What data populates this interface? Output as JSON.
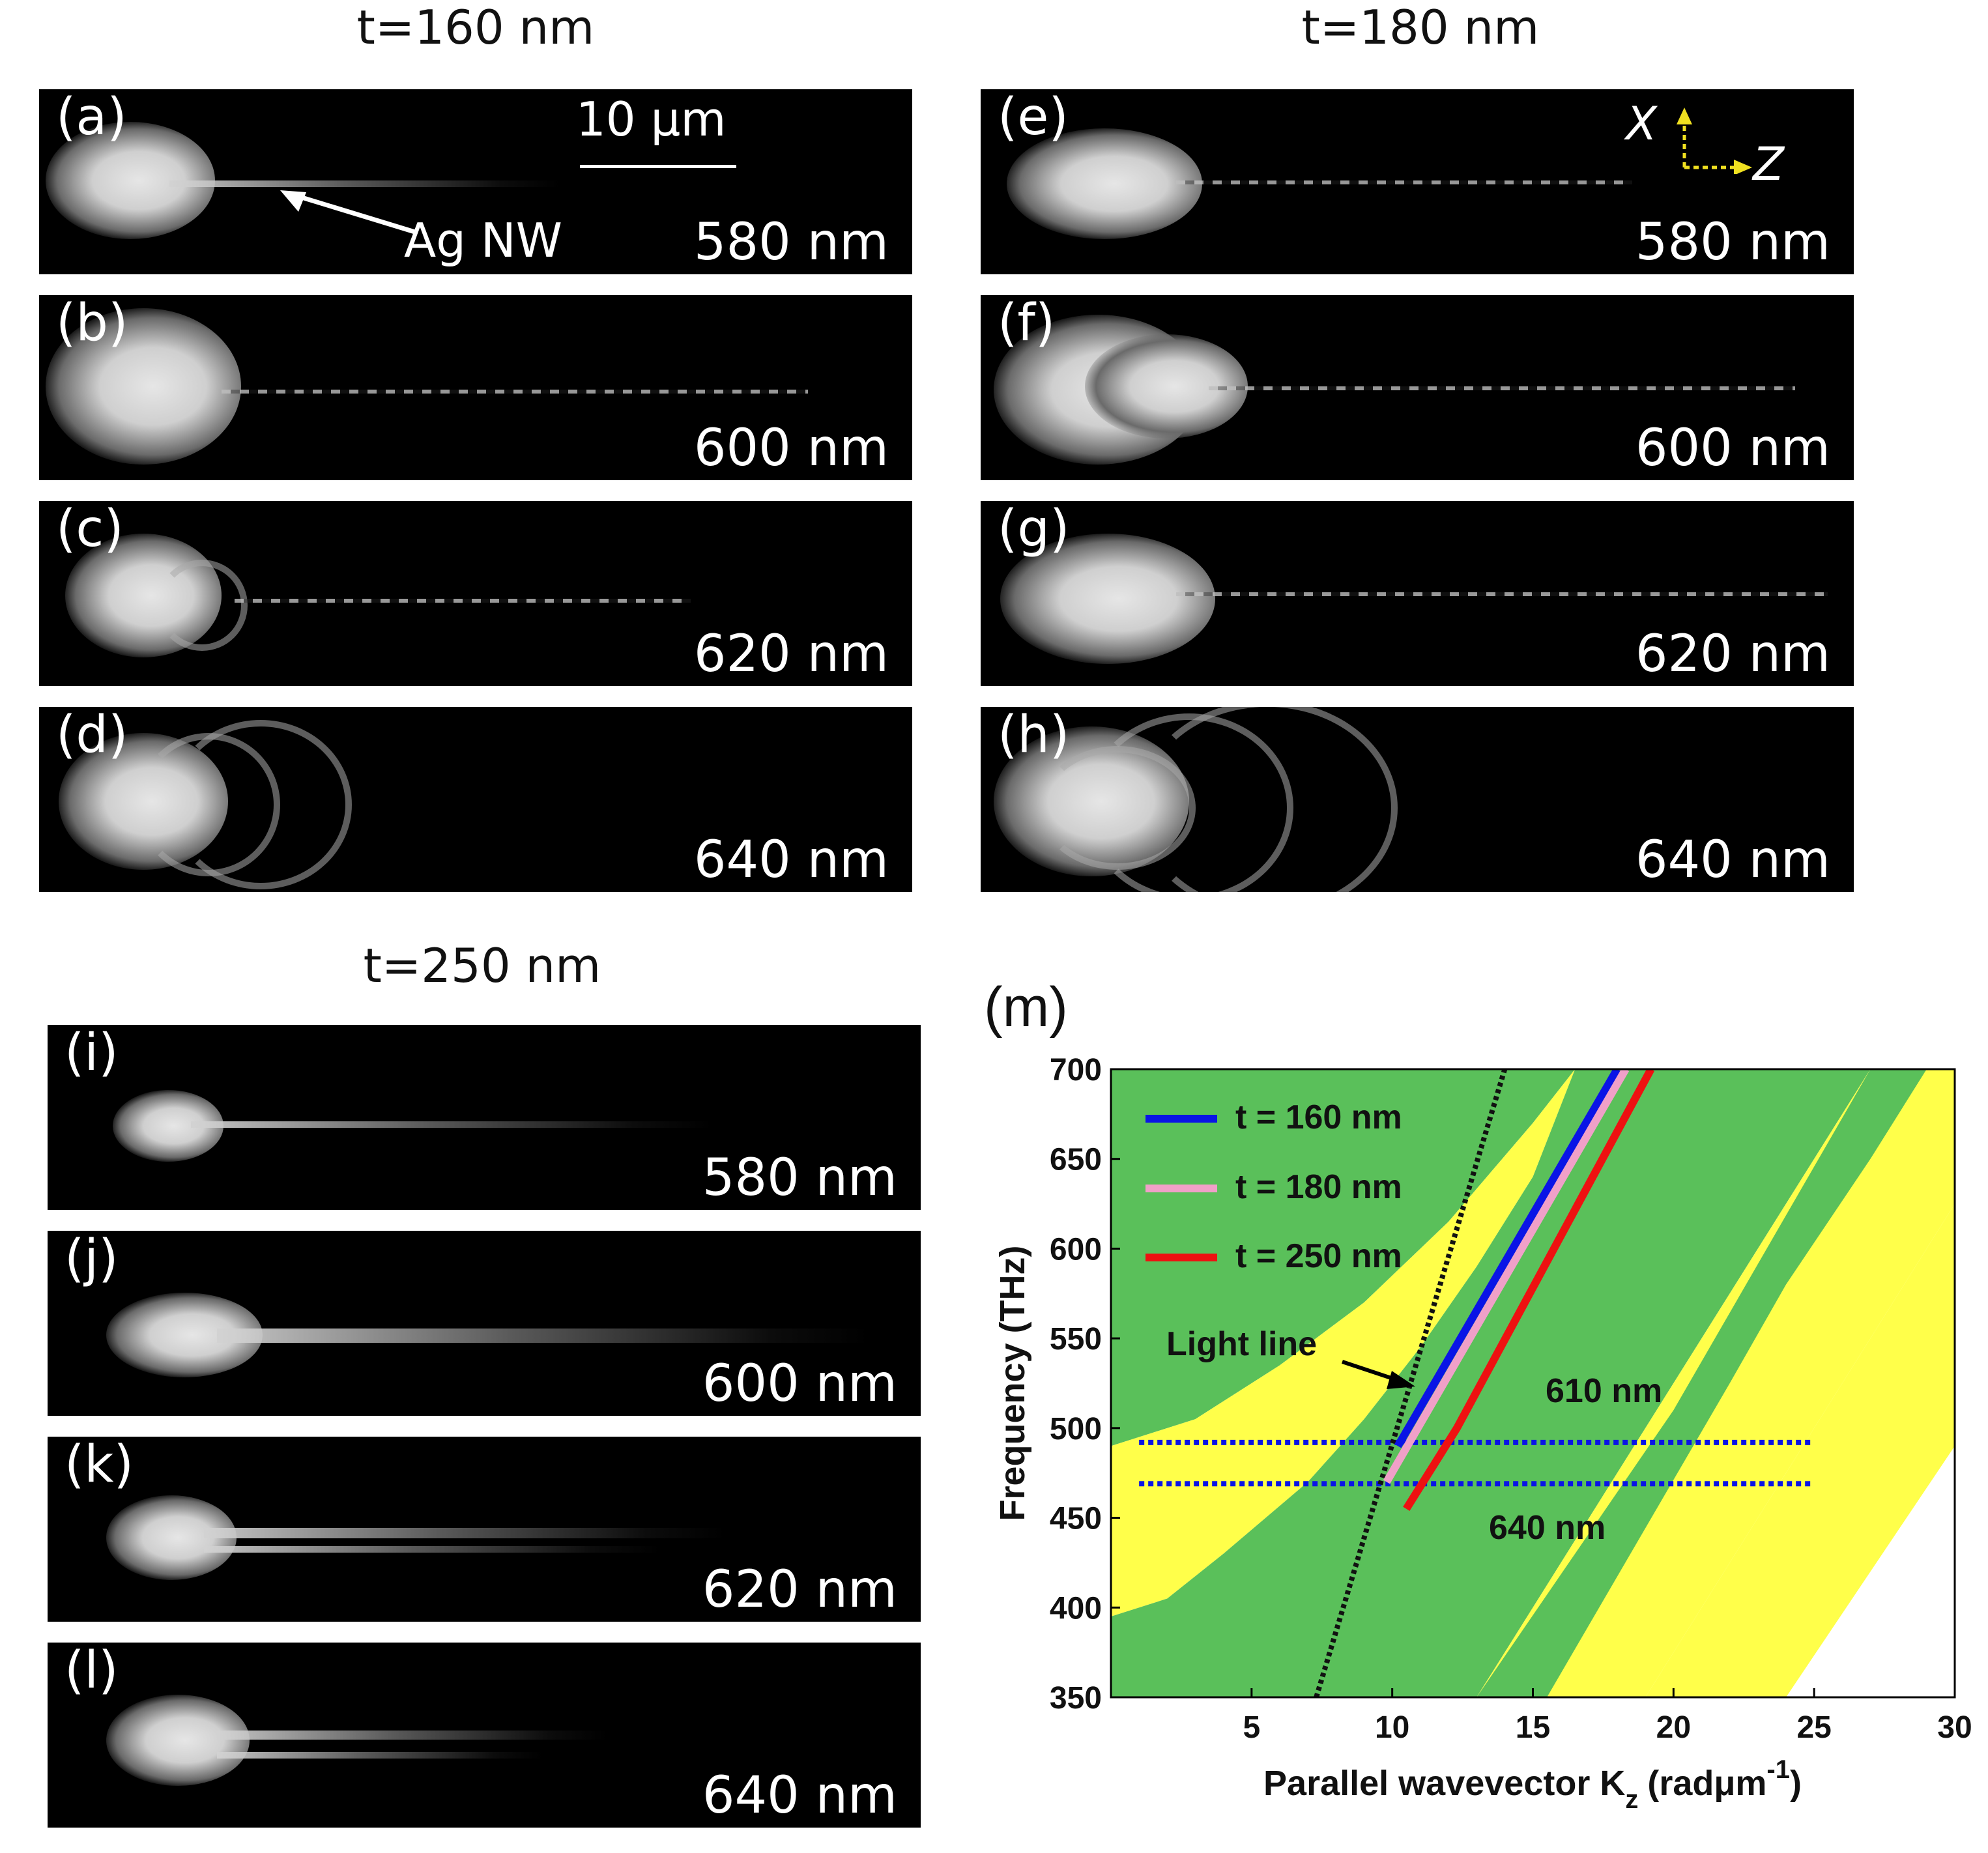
{
  "groups": [
    {
      "title": "t=160 nm",
      "panels": [
        {
          "label": "(a)",
          "wavelength": "580 nm"
        },
        {
          "label": "(b)",
          "wavelength": "600 nm"
        },
        {
          "label": "(c)",
          "wavelength": "620 nm"
        },
        {
          "label": "(d)",
          "wavelength": "640 nm"
        }
      ]
    },
    {
      "title": "t=180 nm",
      "panels": [
        {
          "label": "(e)",
          "wavelength": "580 nm"
        },
        {
          "label": "(f)",
          "wavelength": "600 nm"
        },
        {
          "label": "(g)",
          "wavelength": "620 nm"
        },
        {
          "label": "(h)",
          "wavelength": "640 nm"
        }
      ]
    },
    {
      "title": "t=250 nm",
      "panels": [
        {
          "label": "(i)",
          "wavelength": "580 nm"
        },
        {
          "label": "(j)",
          "wavelength": "600 nm"
        },
        {
          "label": "(k)",
          "wavelength": "620 nm"
        },
        {
          "label": "(l)",
          "wavelength": "640 nm"
        }
      ]
    }
  ],
  "annotations": {
    "scale_bar": "10 μm",
    "wire_label": "Ag NW",
    "axis_x": "X",
    "axis_z": "Z"
  },
  "colors": {
    "green": "#5ac05a",
    "yellow": "#ffff4a",
    "blue": "#0a14e6",
    "pink": "#f0a0c8",
    "red": "#ee1111",
    "dotted_blue": "#0a14e6"
  },
  "chart_data": {
    "type": "line",
    "panel_label": "(m)",
    "xlabel": "Parallel wavevector K",
    "xlabel_sub": "z",
    "xlabel_unit": "(radμm",
    "xlabel_sup": "-1",
    "xlabel_close": ")",
    "ylabel": "Frequency (THz)",
    "xlim": [
      0,
      30
    ],
    "ylim": [
      350,
      700
    ],
    "xticks": [
      5,
      10,
      15,
      20,
      25,
      30
    ],
    "yticks": [
      350,
      400,
      450,
      500,
      550,
      600,
      650,
      700
    ],
    "series": [
      {
        "name": "t = 160 nm",
        "color": "#0a14e6",
        "x": [
          10.2,
          18.0
        ],
        "y": [
          490,
          700
        ]
      },
      {
        "name": "t = 180 nm",
        "color": "#f0a0c8",
        "x": [
          9.8,
          18.3
        ],
        "y": [
          470,
          700
        ]
      },
      {
        "name": "t = 250 nm",
        "color": "#ee1111",
        "x": [
          10.5,
          12.3,
          19.2
        ],
        "y": [
          455,
          500,
          700
        ]
      }
    ],
    "light_line": {
      "name": "Light line",
      "x": [
        7.3,
        14.0
      ],
      "y": [
        350,
        700
      ]
    },
    "reference_lines": [
      {
        "label": "610 nm",
        "y": 492,
        "x_range": [
          1,
          25
        ]
      },
      {
        "label": "640 nm",
        "y": 469,
        "x_range": [
          1,
          25
        ]
      }
    ]
  }
}
